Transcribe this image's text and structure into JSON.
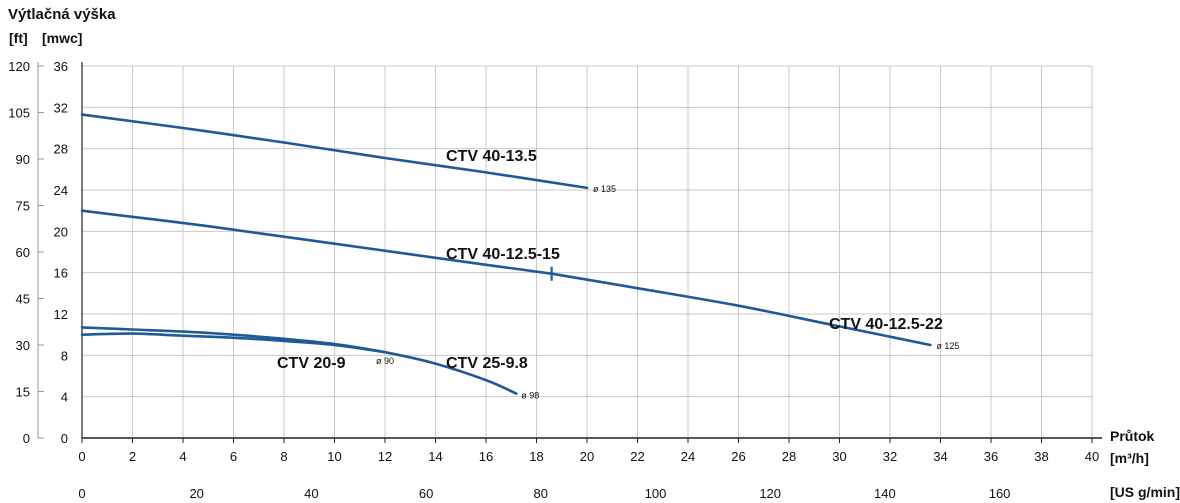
{
  "chart_data": {
    "type": "line",
    "title": "Výtlačná výška",
    "y_units_left": "[ft]",
    "y_units_right": "[mwc]",
    "x_label": "Průtok",
    "x_units": "[m³/h]",
    "x2_units": "[US g/min]",
    "xlim": [
      0,
      40
    ],
    "ylim": [
      0,
      36
    ],
    "y2lim_ft": [
      0,
      120
    ],
    "x_ticks": [
      "0",
      "2",
      "4",
      "6",
      "8",
      "10",
      "12",
      "14",
      "16",
      "18",
      "20",
      "22",
      "24",
      "26",
      "28",
      "30",
      "32",
      "34",
      "36",
      "38",
      "40"
    ],
    "x2_ticks": [
      "0",
      "20",
      "40",
      "60",
      "80",
      "100",
      "120",
      "140",
      "160"
    ],
    "y_ticks": [
      "0",
      "4",
      "8",
      "12",
      "16",
      "20",
      "24",
      "28",
      "32",
      "36"
    ],
    "y_ft_ticks": [
      "0",
      "15",
      "30",
      "45",
      "60",
      "75",
      "90",
      "105",
      "120"
    ],
    "grid": true,
    "line_color": "#1f5a96",
    "series": [
      {
        "name": "CTV 40-13.5",
        "x": [
          0,
          4,
          8,
          12,
          16,
          20
        ],
        "y": [
          31.3,
          30.0,
          28.6,
          27.1,
          25.7,
          24.2
        ],
        "end_label": "ø 135"
      },
      {
        "name": "CTV 40-12.5-15",
        "x": [
          0,
          5,
          10,
          15,
          18.6
        ],
        "y": [
          22.0,
          20.5,
          18.8,
          17.1,
          15.9
        ],
        "end_label": ""
      },
      {
        "name": "CTV 40-12.5-22",
        "x": [
          18.6,
          22,
          26,
          30,
          33.6
        ],
        "y": [
          15.9,
          14.5,
          12.8,
          10.8,
          9.0
        ],
        "end_label": "ø 125"
      },
      {
        "name": "CTV 25-9.8",
        "x": [
          0,
          2,
          4,
          6,
          8,
          10,
          12,
          14,
          16,
          17.2
        ],
        "y": [
          10.7,
          10.5,
          10.3,
          10.0,
          9.6,
          9.1,
          8.3,
          7.2,
          5.6,
          4.3
        ],
        "end_label": "ø 98"
      },
      {
        "name": "CTV 20-9",
        "x": [
          0,
          2,
          4,
          6,
          8,
          10,
          12
        ],
        "y": [
          10.0,
          10.1,
          9.9,
          9.7,
          9.4,
          9.0,
          8.3
        ],
        "end_label": "ø 90"
      }
    ]
  }
}
